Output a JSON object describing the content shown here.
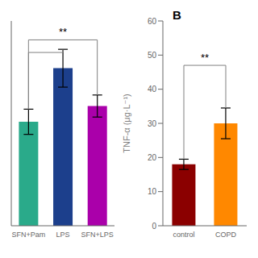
{
  "chart_data": [
    {
      "type": "bar",
      "categories": [
        "SFN+Pam",
        "LPS",
        "SFN+LPS"
      ],
      "values": [
        33,
        50,
        38
      ],
      "errors": [
        4,
        6,
        3.5
      ],
      "colors": [
        "#2aaa8a",
        "#1c3f8c",
        "#aa00aa"
      ],
      "ylim": [
        0,
        65
      ],
      "yticks": [],
      "tick_labels": "x",
      "grid": false,
      "brackets": [
        {
          "from": "SFN+Pam",
          "to": "SFN+LPS",
          "y": 59,
          "label": "**"
        },
        {
          "from": "SFN+Pam",
          "to": "LPS",
          "y": 55
        }
      ]
    },
    {
      "type": "bar",
      "categories": [
        "control",
        "COPD"
      ],
      "values": [
        18,
        30
      ],
      "errors": [
        1.5,
        4.5
      ],
      "colors": [
        "#8b0000",
        "#ff8800"
      ],
      "ylim": [
        0,
        60
      ],
      "yticks": [
        0,
        10,
        20,
        30,
        40,
        50,
        60
      ],
      "ylabel": "TNF-α (μg·L⁻¹)",
      "panel_label": "B",
      "grid": false,
      "brackets": [
        {
          "from": "control",
          "to": "COPD",
          "y": 47,
          "label": "**"
        }
      ]
    }
  ]
}
